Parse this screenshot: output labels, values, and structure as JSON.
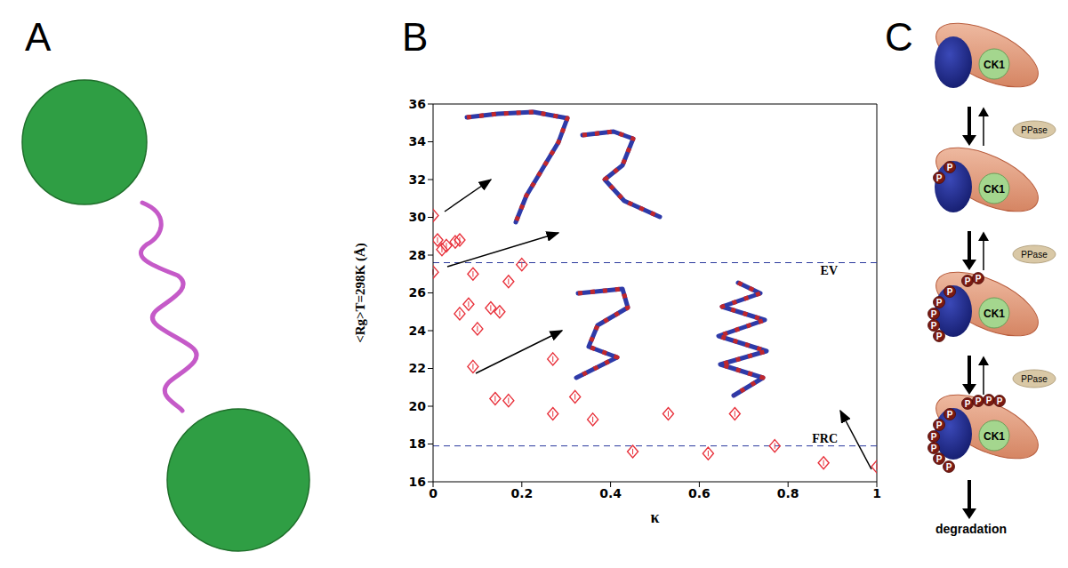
{
  "panel_labels": [
    "A",
    "B",
    "C"
  ],
  "chart_data": {
    "type": "scatter",
    "xlabel": "κ",
    "ylabel": "<Rg>T=298K (Å)",
    "xlim": [
      0,
      1
    ],
    "xticks": [
      0,
      0.2,
      0.4,
      0.6,
      0.8,
      1
    ],
    "ylim": [
      16,
      36
    ],
    "yticks": [
      16,
      18,
      20,
      22,
      24,
      26,
      28,
      30,
      32,
      34,
      36
    ],
    "x": [
      0,
      0,
      0.01,
      0.02,
      0.03,
      0.05,
      0.06,
      0.06,
      0.08,
      0.09,
      0.1,
      0.09,
      0.13,
      0.15,
      0.17,
      0.2,
      0.14,
      0.17,
      0.27,
      0.27,
      0.32,
      0.36,
      0.45,
      0.53,
      0.62,
      0.68,
      0.77,
      0.88,
      1
    ],
    "values": [
      30.1,
      27.1,
      28.8,
      28.3,
      28.5,
      28.7,
      28.8,
      24.9,
      25.4,
      27.0,
      24.1,
      22.1,
      25.2,
      25.0,
      26.6,
      27.5,
      20.4,
      20.3,
      22.5,
      19.6,
      20.5,
      19.3,
      17.6,
      19.6,
      17.5,
      19.6,
      17.9,
      17.0,
      16.8
    ],
    "errors": [
      0.15,
      0.15,
      0.15,
      0.15,
      0.15,
      0.15,
      0.15,
      0.15,
      0.15,
      0.15,
      0.15,
      0.15,
      0.15,
      0.15,
      0.15,
      0.15,
      0.15,
      0.15,
      0.15,
      0.15,
      0.15,
      0.15,
      0.15,
      0.15,
      0.15,
      0.15,
      0.15,
      0.15,
      0.15
    ],
    "color": "#e8313b",
    "marker": "diamond",
    "reference_lines": [
      {
        "label": "EV",
        "value": 27.6,
        "color": "#2b3a9e",
        "line_style": "dashed"
      },
      {
        "label": "FRC",
        "value": 17.9,
        "color": "#2b3a9e",
        "line_style": "dashed"
      }
    ]
  },
  "diagram": {
    "enzyme_label": "CK1",
    "phosphatase_label": "PPase",
    "phospho_label": "P",
    "end_label": "degradation",
    "stages": [
      {
        "top_p": 0,
        "blue_p": 0
      },
      {
        "top_p": 0,
        "blue_p": 2
      },
      {
        "top_p": 2,
        "blue_p": 5
      },
      {
        "top_p": 4,
        "blue_p": 6
      }
    ]
  }
}
